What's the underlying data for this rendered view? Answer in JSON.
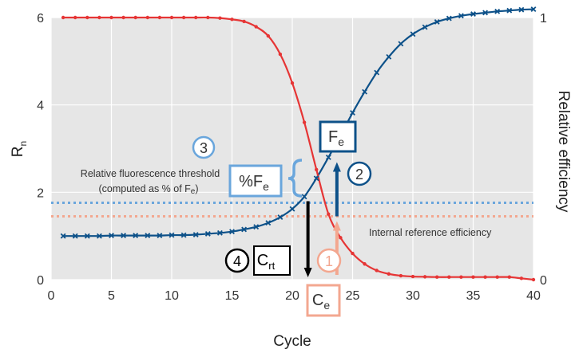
{
  "chart_data": {
    "type": "line",
    "xlabel": "Cycle",
    "ylabel_left": "R",
    "ylabel_left_sub": "n",
    "ylabel_right": "Relative efficiency",
    "xlim": [
      0,
      40
    ],
    "ylim_left": [
      0,
      6
    ],
    "ylim_right": [
      0,
      1
    ],
    "x_ticks": [
      "0",
      "5",
      "10",
      "15",
      "20",
      "25",
      "30",
      "35",
      "40"
    ],
    "y_left_ticks": [
      "0",
      "2",
      "4",
      "6"
    ],
    "y_right_ticks": [
      "0",
      "1"
    ],
    "grid": true,
    "background": "#e6e6e6",
    "series": [
      {
        "axis": "left",
        "color": "#0d5189",
        "marker": "x",
        "x": [
          1,
          2,
          3,
          4,
          5,
          6,
          7,
          8,
          9,
          10,
          11,
          12,
          13,
          14,
          15,
          16,
          17,
          18,
          19,
          20,
          21,
          22,
          23,
          24,
          25,
          26,
          27,
          28,
          29,
          30,
          31,
          32,
          33,
          34,
          35,
          36,
          37,
          38,
          39,
          40
        ],
        "values": [
          1.0,
          1.0,
          1.0,
          1.0,
          1.01,
          1.01,
          1.01,
          1.01,
          1.01,
          1.02,
          1.02,
          1.03,
          1.05,
          1.07,
          1.1,
          1.15,
          1.21,
          1.3,
          1.43,
          1.62,
          1.9,
          2.32,
          2.8,
          3.3,
          3.82,
          4.3,
          4.74,
          5.1,
          5.4,
          5.62,
          5.78,
          5.9,
          5.98,
          6.04,
          6.08,
          6.11,
          6.14,
          6.16,
          6.18,
          6.19
        ]
      },
      {
        "axis": "right",
        "color": "#e63535",
        "marker": "dot",
        "x": [
          1,
          2,
          3,
          4,
          5,
          6,
          7,
          8,
          9,
          10,
          11,
          12,
          13,
          14,
          15,
          16,
          17,
          18,
          19,
          20,
          21,
          22,
          23,
          24,
          25,
          26,
          27,
          28,
          29,
          30,
          31,
          32,
          33,
          34,
          35,
          36,
          37,
          38,
          39,
          40
        ],
        "values": [
          1.0,
          1.0,
          1.0,
          1.0,
          1.0,
          1.0,
          1.0,
          1.0,
          1.0,
          1.0,
          1.0,
          1.0,
          1.0,
          0.998,
          0.993,
          0.985,
          0.965,
          0.93,
          0.86,
          0.75,
          0.6,
          0.42,
          0.25,
          0.16,
          0.1,
          0.06,
          0.035,
          0.022,
          0.015,
          0.012,
          0.011,
          0.01,
          0.01,
          0.01,
          0.01,
          0.01,
          0.01,
          0.01,
          0.005,
          0.0
        ]
      }
    ],
    "threshold_lines": [
      {
        "label": "Relative fluorescence threshold",
        "sublabel": "(computed as % of F",
        "sublabel_sub": "e",
        "sublabel_end": ")",
        "value_left": 1.76,
        "color": "#6aa6dc"
      },
      {
        "label": "Internal reference efficiency",
        "value_left": 1.45,
        "color": "#f3a790"
      }
    ],
    "annotations": [
      {
        "number": "1",
        "box": "C",
        "box_sub": "e",
        "color": "#f3a790",
        "x": 23.7
      },
      {
        "number": "2",
        "box": "F",
        "box_sub": "e",
        "color": "#0d5189",
        "x": 23.7
      },
      {
        "number": "3",
        "box": "%F",
        "box_sub": "e",
        "color": "#6aa6dc"
      },
      {
        "number": "4",
        "box": "C",
        "box_sub": "rt",
        "color": "#000000",
        "x": 21.3
      }
    ]
  }
}
